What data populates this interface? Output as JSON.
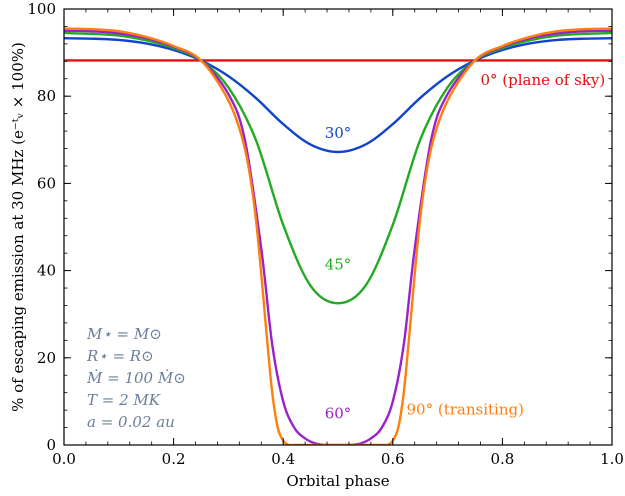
{
  "chart_data": {
    "type": "line",
    "title": "",
    "xlabel": "Orbital phase",
    "ylabel": "% of escaping emission at 30 MHz (e⁻ᵗᵥ × 100%)",
    "xlim": [
      0.0,
      1.0
    ],
    "ylim": [
      0,
      100
    ],
    "x_ticks": [
      "0.0",
      "0.2",
      "0.4",
      "0.6",
      "0.8",
      "1.0"
    ],
    "y_ticks": [
      "0",
      "20",
      "40",
      "60",
      "80",
      "100"
    ],
    "grid": false,
    "series": [
      {
        "name": "0° (plane of sky)",
        "color": "#dd1111",
        "x": [
          0.0,
          0.05,
          0.1,
          0.15,
          0.2,
          0.25,
          0.3,
          0.35,
          0.4,
          0.45,
          0.5,
          0.55,
          0.6,
          0.65,
          0.7,
          0.75,
          0.8,
          0.85,
          0.9,
          0.95,
          1.0
        ],
        "y": [
          88.2,
          88.2,
          88.2,
          88.2,
          88.2,
          88.2,
          88.2,
          88.2,
          88.2,
          88.2,
          88.2,
          88.2,
          88.2,
          88.2,
          88.2,
          88.2,
          88.2,
          88.2,
          88.2,
          88.2,
          88.2
        ]
      },
      {
        "name": "30°",
        "color": "#1144cc",
        "x": [
          0.0,
          0.05,
          0.1,
          0.15,
          0.2,
          0.25,
          0.3,
          0.35,
          0.4,
          0.45,
          0.5,
          0.55,
          0.6,
          0.65,
          0.7,
          0.75,
          0.8,
          0.85,
          0.9,
          0.95,
          1.0
        ],
        "y": [
          93.3,
          93.2,
          92.9,
          92.1,
          90.6,
          88.2,
          84.6,
          79.6,
          73.6,
          68.9,
          67.2,
          68.9,
          73.6,
          79.6,
          84.6,
          88.2,
          90.6,
          92.1,
          92.9,
          93.2,
          93.3
        ]
      },
      {
        "name": "45°",
        "color": "#22aa22",
        "x": [
          0.0,
          0.05,
          0.1,
          0.15,
          0.2,
          0.25,
          0.3,
          0.35,
          0.4,
          0.45,
          0.5,
          0.55,
          0.6,
          0.65,
          0.7,
          0.75,
          0.8,
          0.85,
          0.9,
          0.95,
          1.0
        ],
        "y": [
          94.5,
          94.3,
          93.9,
          92.8,
          91.0,
          88.2,
          82.0,
          70.0,
          50.5,
          36.5,
          32.5,
          36.5,
          50.5,
          70.0,
          82.0,
          88.2,
          91.0,
          92.8,
          93.9,
          94.3,
          94.5
        ]
      },
      {
        "name": "60°",
        "color": "#9922cc",
        "x": [
          0.0,
          0.05,
          0.1,
          0.15,
          0.2,
          0.25,
          0.3,
          0.33,
          0.36,
          0.38,
          0.4,
          0.42,
          0.44,
          0.46,
          0.48,
          0.5,
          0.52,
          0.54,
          0.56,
          0.58,
          0.6,
          0.62,
          0.64,
          0.67,
          0.7,
          0.75,
          0.8,
          0.85,
          0.9,
          0.95,
          1.0
        ],
        "y": [
          95.0,
          94.9,
          94.4,
          93.3,
          91.3,
          88.2,
          80.5,
          70.0,
          45.0,
          23.0,
          10.0,
          4.0,
          1.5,
          0.3,
          0.0,
          0.0,
          0.0,
          0.3,
          1.5,
          4.0,
          10.0,
          23.0,
          45.0,
          70.0,
          80.5,
          88.2,
          91.3,
          93.3,
          94.4,
          94.9,
          95.0
        ]
      },
      {
        "name": "90° (transiting)",
        "color": "#ff7f0e",
        "x": [
          0.0,
          0.05,
          0.1,
          0.15,
          0.2,
          0.25,
          0.3,
          0.33,
          0.35,
          0.37,
          0.38,
          0.39,
          0.4,
          0.41,
          0.42,
          0.5,
          0.58,
          0.59,
          0.6,
          0.61,
          0.62,
          0.63,
          0.65,
          0.67,
          0.7,
          0.75,
          0.8,
          0.85,
          0.9,
          0.95,
          1.0
        ],
        "y": [
          95.5,
          95.4,
          94.9,
          93.6,
          91.5,
          88.2,
          79.0,
          68.0,
          52.0,
          25.0,
          12.0,
          4.0,
          1.0,
          0.0,
          0.0,
          0.0,
          0.0,
          0.0,
          1.0,
          4.0,
          12.0,
          25.0,
          52.0,
          68.0,
          79.0,
          88.2,
          91.5,
          93.6,
          94.9,
          95.4,
          95.5
        ]
      }
    ],
    "series_labels": [
      {
        "text": "0° (plane of sky)",
        "color": "#dd1111",
        "x": 0.76,
        "y": 82.6,
        "anchor": "start"
      },
      {
        "text": "30°",
        "color": "#1144cc",
        "x": 0.5,
        "y": 70.4,
        "anchor": "middle"
      },
      {
        "text": "45°",
        "color": "#22aa22",
        "x": 0.5,
        "y": 40.3,
        "anchor": "middle"
      },
      {
        "text": "60°",
        "color": "#9922cc",
        "x": 0.5,
        "y": 6.1,
        "anchor": "middle"
      },
      {
        "text": "90° (transiting)",
        "color": "#ff7f0e",
        "x": 0.625,
        "y": 7.0,
        "anchor": "start"
      }
    ],
    "parameters": [
      "M⋆ = M⊙",
      "R⋆ = R⊙",
      "Ṁ = 100 Ṁ⊙",
      "T = 2 MK",
      "a = 0.02 au"
    ],
    "parameters_color": "#6a7f99"
  }
}
